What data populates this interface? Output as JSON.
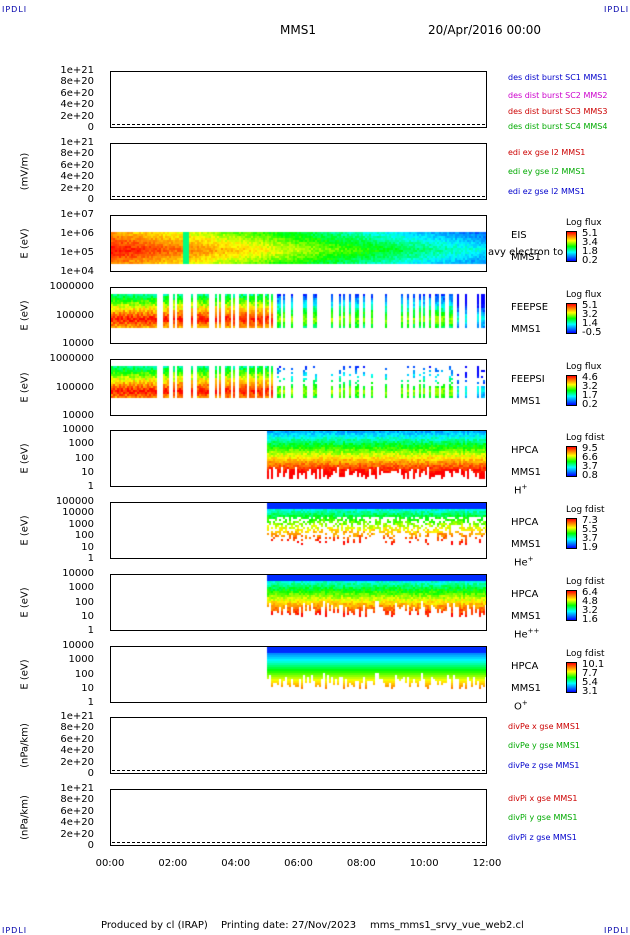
{
  "header": {
    "corner_tl": "IPDLI",
    "corner_tr": "IPDLI",
    "corner_bl": "IPDLI",
    "corner_br": "IPDLI",
    "mission": "MMS1",
    "datetime": "20/Apr/2016 00:00"
  },
  "footer": {
    "produced": "Produced by cl (IRAP)",
    "printing": "Printing date: 27/Nov/2023",
    "script": "mms_mms1_srvy_vue_web2.cl"
  },
  "x_axis": {
    "ticks": [
      "00:00",
      "02:00",
      "04:00",
      "06:00",
      "08:00",
      "10:00",
      "12:00"
    ]
  },
  "colors": {
    "mms1": "#0000cc",
    "mms2": "#cc00cc",
    "mms3": "#cc0000",
    "mms4": "#00aa00",
    "x": "#cc0000",
    "y": "#00aa00",
    "z": "#0000cc"
  },
  "panels": [
    {
      "id": "des",
      "ylabel": "",
      "ticks": [
        "1e+21",
        "8e+20",
        "6e+20",
        "4e+20",
        "2e+20",
        "0"
      ],
      "legend": [
        "des dist burst SC1 MMS1",
        "des dist burst SC2 MMS2",
        "des dist burst SC3 MMS3",
        "des dist burst SC4 MMS4"
      ]
    },
    {
      "id": "edi",
      "ylabel": "(mV/m)",
      "ticks": [
        "1e+21",
        "8e+20",
        "6e+20",
        "4e+20",
        "2e+20",
        "0"
      ],
      "legend": [
        "edi ex gse l2 MMS1",
        "edi ey gse l2 MMS1",
        "edi ez gse l2 MMS1"
      ]
    },
    {
      "id": "eis",
      "ylabel": "E (eV)",
      "ticks": [
        "1e+07",
        "1e+06",
        "1e+05",
        "1e+04"
      ],
      "side": [
        "EIS",
        "MMS1"
      ],
      "overlay": "avy electron to",
      "cbar_title": "Log flux",
      "cbar": [
        "5.1",
        "3.4",
        "1.8",
        "0.2"
      ]
    },
    {
      "id": "feepse",
      "ylabel": "E (eV)",
      "ticks": [
        "1000000",
        "100000",
        "10000"
      ],
      "side": [
        "FEEPSE",
        "MMS1"
      ],
      "cbar_title": "Log flux",
      "cbar": [
        "5.1",
        "3.2",
        "1.4",
        "-0.5"
      ]
    },
    {
      "id": "feepsi",
      "ylabel": "E (eV)",
      "ticks": [
        "1000000",
        "100000",
        "10000"
      ],
      "side": [
        "FEEPSI",
        "MMS1"
      ],
      "cbar_title": "Log flux",
      "cbar": [
        "4.6",
        "3.2",
        "1.7",
        "0.2"
      ]
    },
    {
      "id": "hpca_h",
      "ylabel": "E (eV)",
      "ticks": [
        "10000",
        "1000",
        "100",
        "10",
        "1"
      ],
      "side": [
        "HPCA",
        "MMS1"
      ],
      "species": "H",
      "charge": "+",
      "cbar_title": "Log fdist",
      "cbar": [
        "9.5",
        "6.6",
        "3.7",
        "0.8"
      ]
    },
    {
      "id": "hpca_he",
      "ylabel": "E (eV)",
      "ticks": [
        "100000",
        "10000",
        "1000",
        "100",
        "10",
        "1"
      ],
      "side": [
        "HPCA",
        "MMS1"
      ],
      "species": "He",
      "charge": "+",
      "cbar_title": "Log fdist",
      "cbar": [
        "7.3",
        "5.5",
        "3.7",
        "1.9"
      ]
    },
    {
      "id": "hpca_he2",
      "ylabel": "E (eV)",
      "ticks": [
        "10000",
        "1000",
        "100",
        "10",
        "1"
      ],
      "side": [
        "HPCA",
        "MMS1"
      ],
      "species": "He",
      "charge": "++",
      "cbar_title": "Log fdist",
      "cbar": [
        "6.4",
        "4.8",
        "3.2",
        "1.6"
      ]
    },
    {
      "id": "hpca_o",
      "ylabel": "E (eV)",
      "ticks": [
        "10000",
        "1000",
        "100",
        "10",
        "1"
      ],
      "side": [
        "HPCA",
        "MMS1"
      ],
      "species": "O",
      "charge": "+",
      "cbar_title": "Log fdist",
      "cbar": [
        "10.1",
        "7.7",
        "5.4",
        "3.1"
      ]
    },
    {
      "id": "divpe",
      "ylabel": "(nPa/km)",
      "ticks": [
        "1e+21",
        "8e+20",
        "6e+20",
        "4e+20",
        "2e+20",
        "0"
      ],
      "legend": [
        "divPe x gse MMS1",
        "divPe y gse MMS1",
        "divPe z gse MMS1"
      ]
    },
    {
      "id": "divpi",
      "ylabel": "(nPa/km)",
      "ticks": [
        "1e+21",
        "8e+20",
        "6e+20",
        "4e+20",
        "2e+20",
        "0"
      ],
      "legend": [
        "divPi x gse MMS1",
        "divPi y gse MMS1",
        "divPi z gse MMS1"
      ]
    }
  ],
  "chart_data": {
    "type": "heatmap",
    "x_range": [
      "00:00",
      "12:00"
    ],
    "spectrograms": [
      {
        "panel": "eis",
        "coverage": "00:00-12:00",
        "y_range_eV": [
          10000.0,
          10000000.0
        ]
      },
      {
        "panel": "feepse",
        "coverage": "00:00-12:00",
        "y_range_eV": [
          10000.0,
          1000000.0
        ]
      },
      {
        "panel": "feepsi",
        "coverage": "00:00-12:00",
        "y_range_eV": [
          10000.0,
          1000000.0
        ]
      },
      {
        "panel": "hpca_h",
        "coverage": "05:00-12:00",
        "y_range_eV": [
          1,
          10000.0
        ]
      },
      {
        "panel": "hpca_he",
        "coverage": "05:00-12:00",
        "y_range_eV": [
          1,
          100000.0
        ]
      },
      {
        "panel": "hpca_he2",
        "coverage": "05:00-12:00",
        "y_range_eV": [
          1,
          10000.0
        ]
      },
      {
        "panel": "hpca_o",
        "coverage": "05:00-12:00",
        "y_range_eV": [
          1,
          10000.0
        ]
      }
    ]
  }
}
